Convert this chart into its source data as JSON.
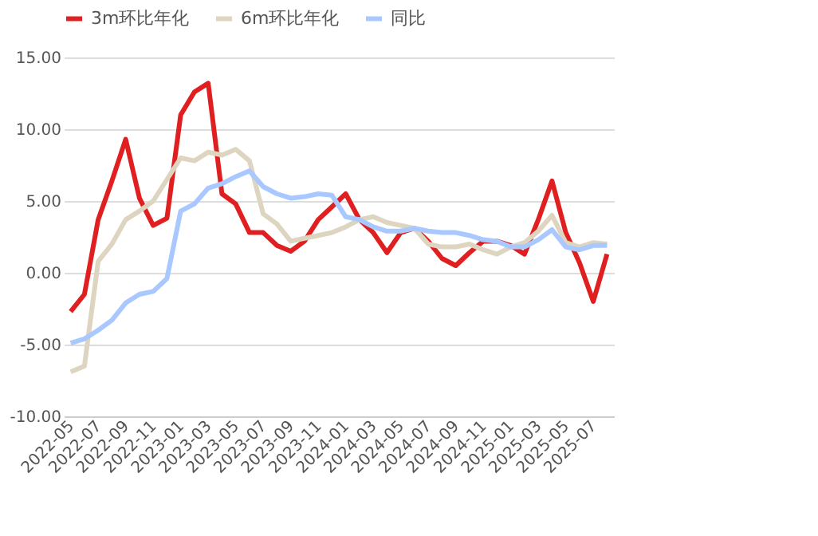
{
  "chart_data": {
    "type": "line",
    "categories": [
      "2022-05",
      null,
      "2022-07",
      null,
      "2022-09",
      null,
      "2022-11",
      null,
      "2023-01",
      null,
      "2023-03",
      null,
      "2023-05",
      null,
      "2023-07",
      null,
      "2023-09",
      null,
      "2023-11",
      null,
      "2024-01",
      null,
      "2024-03",
      null,
      "2024-05",
      null,
      "2024-07",
      null,
      "2024-09",
      null,
      "2024-11",
      null,
      "2025-01",
      null,
      "2025-03",
      null,
      "2025-05",
      null,
      "2025-07",
      null
    ],
    "series": [
      {
        "name": "3m环比年化",
        "color": "#e02020",
        "values": [
          -2.7,
          -1.5,
          3.7,
          6.4,
          9.3,
          5.2,
          3.3,
          3.8,
          11.0,
          12.6,
          13.2,
          5.5,
          4.8,
          2.8,
          2.8,
          1.9,
          1.5,
          2.2,
          3.7,
          4.6,
          5.5,
          3.7,
          2.8,
          1.4,
          2.8,
          3.1,
          2.2,
          1.0,
          0.5,
          1.4,
          2.2,
          2.2,
          1.9,
          1.3,
          3.7,
          6.4,
          2.8,
          0.7,
          -2.0,
          1.3
        ]
      },
      {
        "name": "6m环比年化",
        "color": "#ddd5c0",
        "values": [
          -6.9,
          -6.5,
          0.8,
          2.0,
          3.7,
          4.3,
          5.0,
          6.5,
          8.0,
          7.8,
          8.4,
          8.2,
          8.6,
          7.8,
          4.1,
          3.4,
          2.2,
          2.4,
          2.6,
          2.8,
          3.2,
          3.7,
          3.9,
          3.5,
          3.3,
          3.1,
          2.0,
          1.8,
          1.8,
          2.0,
          1.6,
          1.3,
          1.8,
          2.1,
          2.9,
          4.0,
          2.1,
          1.8,
          2.1,
          2.0
        ]
      },
      {
        "name": "同比",
        "color": "#a8c8ff",
        "values": [
          -4.9,
          -4.6,
          -4.0,
          -3.3,
          -2.1,
          -1.5,
          -1.3,
          -0.4,
          4.3,
          4.8,
          5.9,
          6.2,
          6.7,
          7.1,
          6.0,
          5.5,
          5.2,
          5.3,
          5.5,
          5.4,
          3.9,
          3.7,
          3.2,
          2.9,
          2.9,
          3.1,
          2.9,
          2.8,
          2.8,
          2.6,
          2.3,
          2.2,
          1.8,
          1.8,
          2.3,
          3.0,
          1.8,
          1.6,
          1.9,
          1.9
        ]
      }
    ],
    "ylim": [
      -10,
      15
    ],
    "yticks": [
      {
        "value": -10,
        "label": "-10.00"
      },
      {
        "value": -5,
        "label": "-5.00"
      },
      {
        "value": 0,
        "label": "0.00"
      },
      {
        "value": 5,
        "label": "5.00"
      },
      {
        "value": 10,
        "label": "10.00"
      },
      {
        "value": 15,
        "label": "15.00"
      }
    ],
    "grid": "y",
    "legend": "top",
    "marker": "none",
    "line_style": "solid"
  }
}
